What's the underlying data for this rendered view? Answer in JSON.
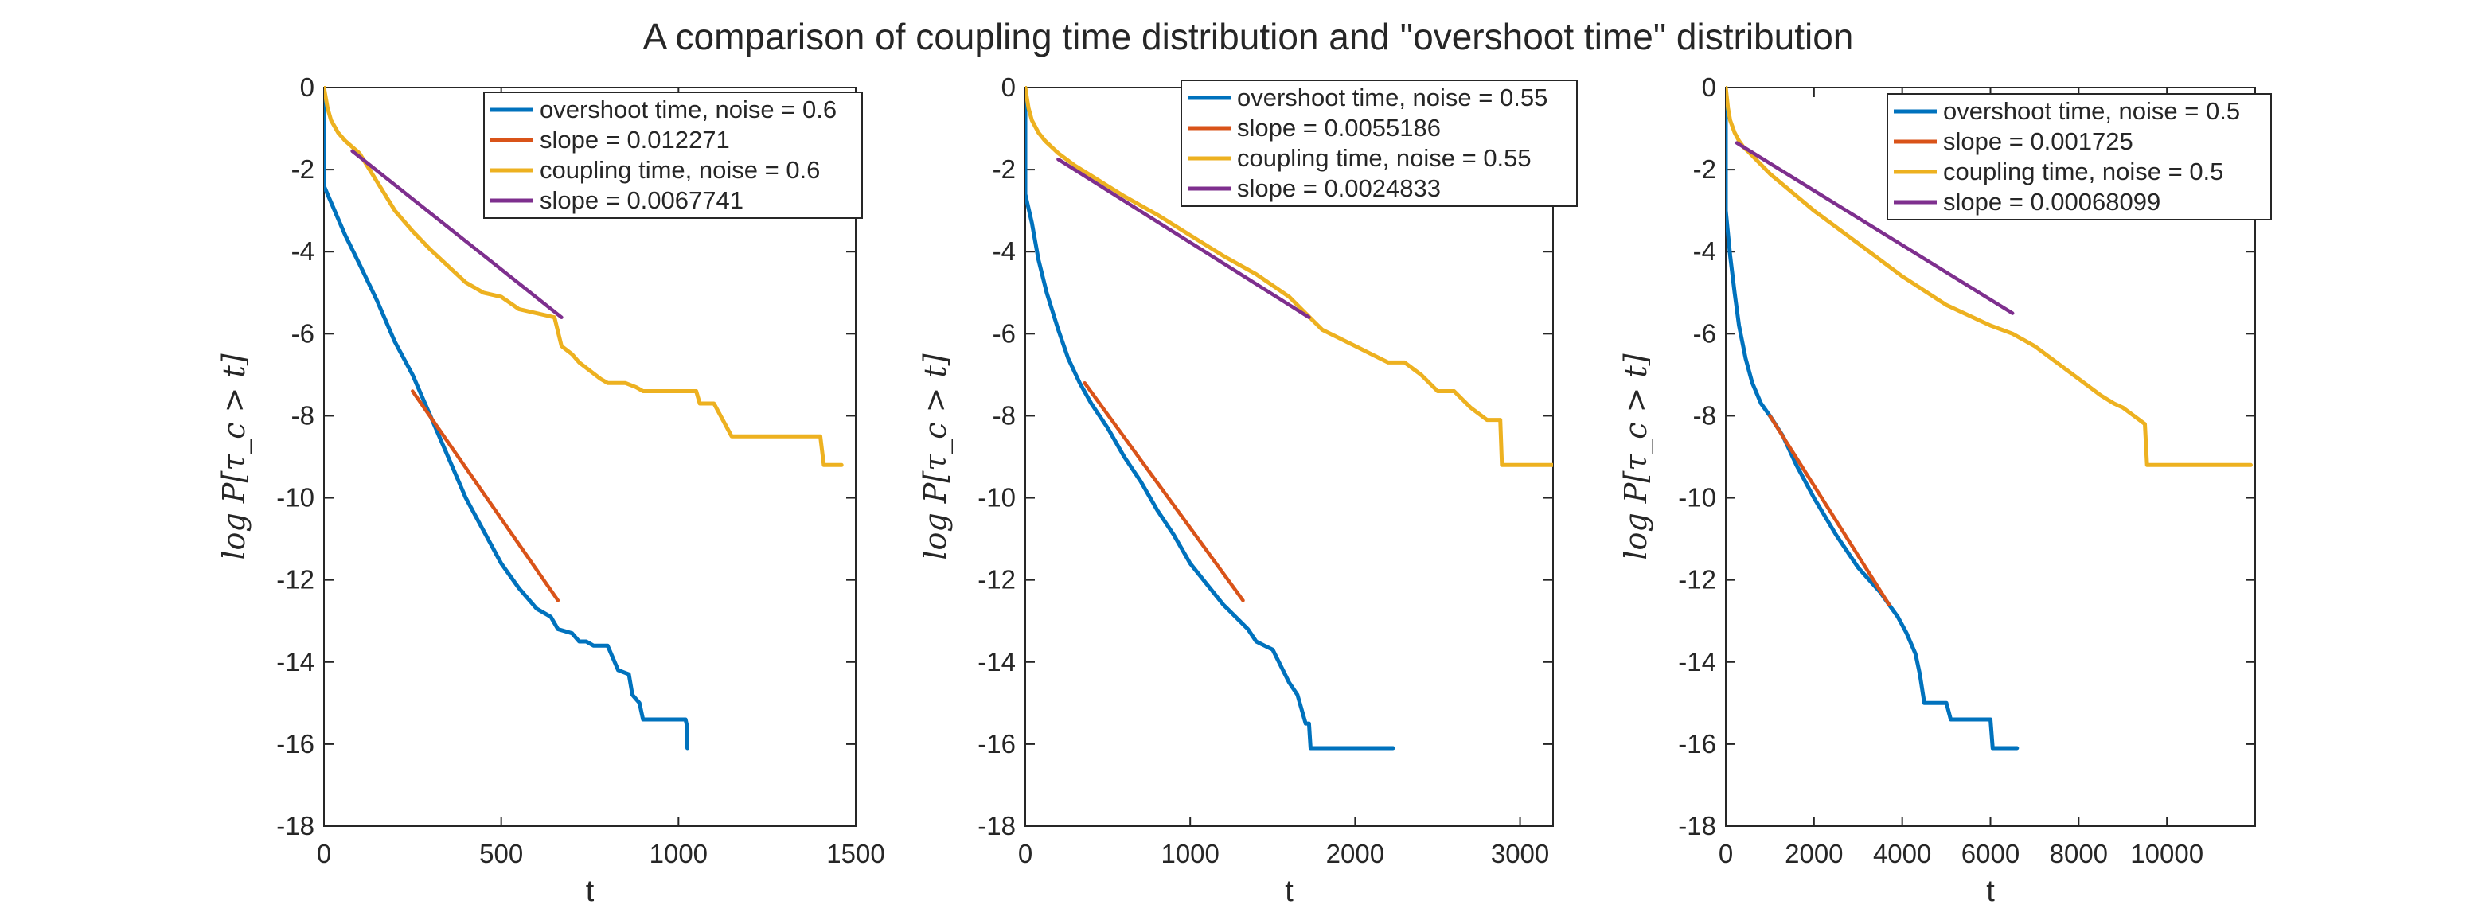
{
  "title": "A comparison of coupling time distribution and \"overshoot time\" distribution",
  "colors": {
    "overshoot": "#0072BD",
    "slope_overshoot": "#D95319",
    "coupling": "#EDB120",
    "slope_coupling": "#7E2F8E",
    "axis": "#262626",
    "background": "#ffffff"
  },
  "chart_data": [
    {
      "type": "line",
      "xlabel": "t",
      "ylabel": "log P[τ_c > t]",
      "xlim": [
        0,
        1500
      ],
      "ylim": [
        -18,
        0
      ],
      "xticks": [
        0,
        500,
        1000,
        1500
      ],
      "xtick_labels": [
        "0",
        "500",
        "1000",
        "1500"
      ],
      "yticks": [
        0,
        -2,
        -4,
        -6,
        -8,
        -10,
        -12,
        -14,
        -16,
        -18
      ],
      "ytick_labels": [
        "0",
        "-2",
        "-4",
        "-6",
        "-8",
        "-10",
        "-12",
        "-14",
        "-16",
        "-18"
      ],
      "legend_position": "top-right",
      "series": [
        {
          "name": "overshoot time, noise = 0.6",
          "color_key": "overshoot",
          "x": [
            0,
            0,
            0,
            30,
            60,
            100,
            150,
            200,
            250,
            300,
            350,
            400,
            450,
            500,
            550,
            600,
            640,
            660,
            700,
            720,
            740,
            760,
            800,
            830,
            860,
            870,
            880,
            890,
            900,
            950,
            1000,
            1020,
            1025,
            1025
          ],
          "y": [
            0,
            -1.2,
            -2.4,
            -3.0,
            -3.6,
            -4.3,
            -5.2,
            -6.2,
            -7.0,
            -8.0,
            -9.0,
            -10.0,
            -10.8,
            -11.6,
            -12.2,
            -12.7,
            -12.9,
            -13.2,
            -13.3,
            -13.5,
            -13.5,
            -13.6,
            -13.6,
            -14.2,
            -14.3,
            -14.8,
            -14.9,
            -15.0,
            -15.4,
            -15.4,
            -15.4,
            -15.4,
            -15.6,
            -16.1
          ]
        },
        {
          "name": "slope = 0.012271",
          "color_key": "slope_overshoot",
          "x": [
            250,
            660
          ],
          "y": [
            -7.4,
            -12.5
          ]
        },
        {
          "name": "coupling time, noise = 0.6",
          "color_key": "coupling",
          "x": [
            0,
            10,
            20,
            40,
            60,
            80,
            100,
            150,
            200,
            250,
            300,
            350,
            400,
            450,
            500,
            550,
            600,
            650,
            670,
            700,
            720,
            750,
            780,
            800,
            850,
            880,
            900,
            950,
            1000,
            1050,
            1060,
            1100,
            1150,
            1200,
            1300,
            1400,
            1410,
            1460
          ],
          "y": [
            0,
            -0.5,
            -0.8,
            -1.1,
            -1.3,
            -1.45,
            -1.6,
            -2.3,
            -3.0,
            -3.5,
            -3.95,
            -4.35,
            -4.75,
            -5.0,
            -5.1,
            -5.4,
            -5.5,
            -5.6,
            -6.3,
            -6.5,
            -6.7,
            -6.9,
            -7.1,
            -7.2,
            -7.2,
            -7.3,
            -7.4,
            -7.4,
            -7.4,
            -7.4,
            -7.7,
            -7.7,
            -8.5,
            -8.5,
            -8.5,
            -8.5,
            -9.2,
            -9.2
          ]
        },
        {
          "name": "slope = 0.0067741",
          "color_key": "slope_coupling",
          "x": [
            80,
            670
          ],
          "y": [
            -1.55,
            -5.6
          ]
        }
      ]
    },
    {
      "type": "line",
      "xlabel": "t",
      "ylabel": "log P[τ_c > t]",
      "xlim": [
        0,
        3200
      ],
      "ylim": [
        -18,
        0
      ],
      "xticks": [
        0,
        1000,
        2000,
        3000
      ],
      "xtick_labels": [
        "0",
        "1000",
        "2000",
        "3000"
      ],
      "yticks": [
        0,
        -2,
        -4,
        -6,
        -8,
        -10,
        -12,
        -14,
        -16,
        -18
      ],
      "ytick_labels": [
        "0",
        "-2",
        "-4",
        "-6",
        "-8",
        "-10",
        "-12",
        "-14",
        "-16",
        "-18"
      ],
      "legend_position": "top-right",
      "series": [
        {
          "name": "overshoot time, noise = 0.55",
          "color_key": "overshoot",
          "x": [
            0,
            0,
            0,
            40,
            80,
            130,
            200,
            260,
            330,
            400,
            500,
            600,
            700,
            800,
            900,
            1000,
            1100,
            1200,
            1250,
            1300,
            1350,
            1400,
            1450,
            1500,
            1550,
            1600,
            1650,
            1700,
            1720,
            1730,
            2000,
            2230
          ],
          "y": [
            0,
            -1.3,
            -2.6,
            -3.3,
            -4.2,
            -5.0,
            -5.9,
            -6.6,
            -7.2,
            -7.7,
            -8.3,
            -9.0,
            -9.6,
            -10.3,
            -10.9,
            -11.6,
            -12.1,
            -12.6,
            -12.8,
            -13.0,
            -13.2,
            -13.5,
            -13.6,
            -13.7,
            -14.1,
            -14.5,
            -14.8,
            -15.5,
            -15.5,
            -16.1,
            -16.1,
            -16.1
          ]
        },
        {
          "name": "slope = 0.0055186",
          "color_key": "slope_overshoot",
          "x": [
            360,
            1320
          ],
          "y": [
            -7.2,
            -12.5
          ]
        },
        {
          "name": "coupling time, noise = 0.55",
          "color_key": "coupling",
          "x": [
            0,
            20,
            40,
            80,
            120,
            160,
            200,
            300,
            400,
            500,
            600,
            800,
            1000,
            1200,
            1400,
            1600,
            1700,
            1800,
            1900,
            2000,
            2100,
            2200,
            2300,
            2400,
            2500,
            2600,
            2700,
            2800,
            2880,
            2890,
            3200
          ],
          "y": [
            0,
            -0.5,
            -0.8,
            -1.1,
            -1.3,
            -1.45,
            -1.6,
            -1.9,
            -2.15,
            -2.4,
            -2.65,
            -3.1,
            -3.6,
            -4.1,
            -4.55,
            -5.1,
            -5.5,
            -5.9,
            -6.1,
            -6.3,
            -6.5,
            -6.7,
            -6.7,
            -7.0,
            -7.4,
            -7.4,
            -7.8,
            -8.1,
            -8.1,
            -9.2,
            -9.2
          ]
        },
        {
          "name": "slope = 0.0024833",
          "color_key": "slope_coupling",
          "x": [
            200,
            1720
          ],
          "y": [
            -1.75,
            -5.6
          ]
        }
      ]
    },
    {
      "type": "line",
      "xlabel": "t",
      "ylabel": "log P[τ_c > t]",
      "xlim": [
        0,
        12000
      ],
      "ylim": [
        -18,
        0
      ],
      "xticks": [
        0,
        2000,
        4000,
        6000,
        8000,
        10000
      ],
      "xtick_labels": [
        "0",
        "2000",
        "4000",
        "6000",
        "8000",
        "10000"
      ],
      "yticks": [
        0,
        -2,
        -4,
        -6,
        -8,
        -10,
        -12,
        -14,
        -16,
        -18
      ],
      "ytick_labels": [
        "0",
        "-2",
        "-4",
        "-6",
        "-8",
        "-10",
        "-12",
        "-14",
        "-16",
        "-18"
      ],
      "legend_position": "top-right",
      "series": [
        {
          "name": "overshoot time, noise = 0.5",
          "color_key": "overshoot",
          "x": [
            0,
            0,
            0,
            100,
            200,
            300,
            450,
            600,
            800,
            1000,
            1300,
            1600,
            2000,
            2500,
            3000,
            3500,
            3700,
            3900,
            4100,
            4300,
            4400,
            4500,
            5000,
            5100,
            6000,
            6050,
            6600
          ],
          "y": [
            0,
            -1.5,
            -3.0,
            -4.1,
            -5.0,
            -5.8,
            -6.6,
            -7.2,
            -7.7,
            -8.0,
            -8.5,
            -9.2,
            -10.0,
            -10.9,
            -11.7,
            -12.3,
            -12.6,
            -12.9,
            -13.3,
            -13.8,
            -14.3,
            -15.0,
            -15.0,
            -15.4,
            -15.4,
            -16.1,
            -16.1
          ]
        },
        {
          "name": "slope = 0.001725",
          "color_key": "slope_overshoot",
          "x": [
            1000,
            3700
          ],
          "y": [
            -8.0,
            -12.6
          ]
        },
        {
          "name": "coupling time, noise = 0.5",
          "color_key": "coupling",
          "x": [
            0,
            50,
            100,
            200,
            300,
            400,
            500,
            1000,
            2000,
            3000,
            4000,
            5000,
            6000,
            6500,
            7000,
            7500,
            8000,
            8500,
            8800,
            9000,
            9500,
            9550,
            11900
          ],
          "y": [
            0,
            -0.5,
            -0.8,
            -1.1,
            -1.3,
            -1.45,
            -1.55,
            -2.1,
            -3.0,
            -3.8,
            -4.6,
            -5.3,
            -5.8,
            -6.0,
            -6.3,
            -6.7,
            -7.1,
            -7.5,
            -7.7,
            -7.8,
            -8.2,
            -9.2,
            -9.2
          ]
        },
        {
          "name": "slope = 0.00068099",
          "color_key": "slope_coupling",
          "x": [
            250,
            6500
          ],
          "y": [
            -1.35,
            -5.5
          ]
        }
      ]
    }
  ]
}
